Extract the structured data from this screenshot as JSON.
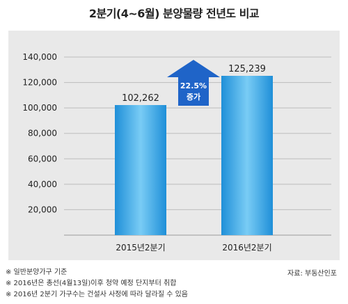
{
  "title": "2분기(4~6월) 분양물량 전년도 비교",
  "chart_data": {
    "type": "bar",
    "categories": [
      "2015년2분기",
      "2016년2분기"
    ],
    "values": [
      102262,
      125239
    ],
    "value_labels": [
      "102,262",
      "125,239"
    ],
    "yticks": [
      20000,
      40000,
      60000,
      80000,
      100000,
      120000,
      140000
    ],
    "ytick_labels": [
      "20,000",
      "40,000",
      "60,000",
      "80,000",
      "100,000",
      "120,000",
      "140,000"
    ],
    "ylim": [
      0,
      140000
    ],
    "grid": true,
    "annotation": {
      "line1": "22.5%",
      "line2": "증가",
      "color": "#1f64c8"
    },
    "bar_color": "#2ea3e6"
  },
  "notes": [
    "※ 일반분양가구 기준",
    "※ 2016년은 총선(4월13일)이후 청약 예정 단지부터 취합",
    "※ 2016년 2분기 가구수는 건설사 사정에 따라 달라질 수 있음"
  ],
  "source": "자료: 부동산인포"
}
